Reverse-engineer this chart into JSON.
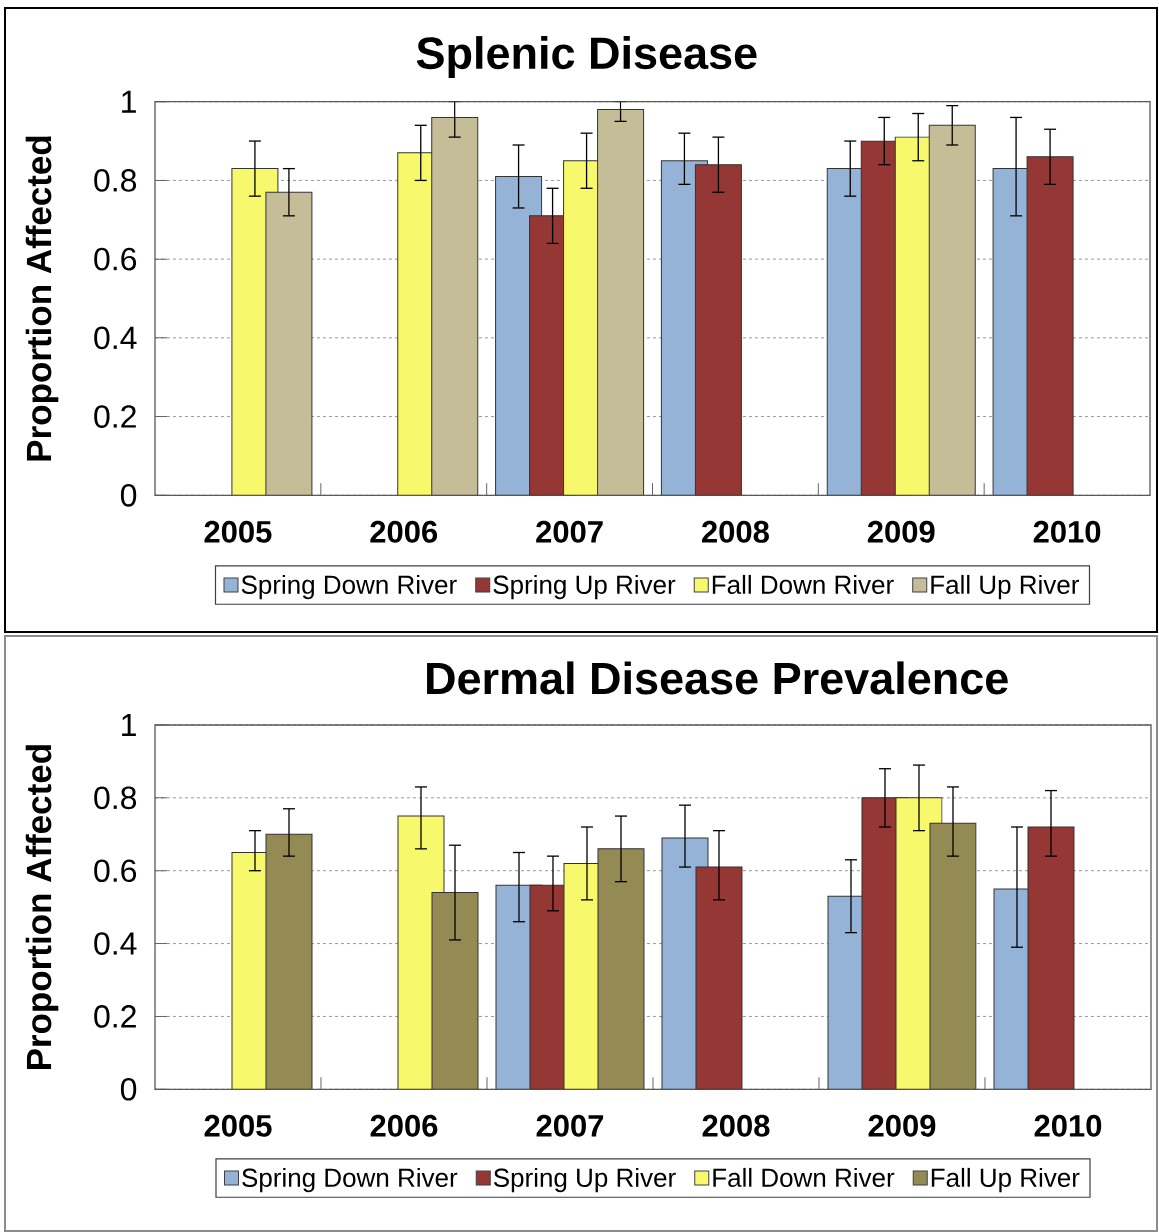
{
  "chart_data": [
    {
      "type": "bar",
      "title": "Splenic Disease",
      "ylabel": "Proportion Affected",
      "categories": [
        "2005",
        "2006",
        "2007",
        "2008",
        "2009",
        "2010"
      ],
      "series": [
        {
          "name": "Spring Down River",
          "color": "#95b3d7",
          "values": [
            null,
            null,
            0.81,
            0.85,
            0.83,
            0.83
          ],
          "errors": [
            null,
            null,
            [
              0.73,
              0.89
            ],
            [
              0.79,
              0.92
            ],
            [
              0.76,
              0.9
            ],
            [
              0.71,
              0.96
            ]
          ]
        },
        {
          "name": "Spring Up River",
          "color": "#953735",
          "values": [
            null,
            null,
            0.71,
            0.84,
            0.9,
            0.86
          ],
          "errors": [
            null,
            null,
            [
              0.64,
              0.78
            ],
            [
              0.77,
              0.91
            ],
            [
              0.84,
              0.96
            ],
            [
              0.79,
              0.93
            ]
          ]
        },
        {
          "name": "Fall Down River",
          "color": "#f8f86c",
          "values": [
            0.83,
            0.87,
            0.85,
            null,
            0.91,
            null
          ],
          "errors": [
            [
              0.76,
              0.9
            ],
            [
              0.8,
              0.94
            ],
            [
              0.78,
              0.92
            ],
            null,
            [
              0.85,
              0.97
            ],
            null
          ]
        },
        {
          "name": "Fall Up River",
          "color": "#c4bd97",
          "values": [
            0.77,
            0.96,
            0.98,
            null,
            0.94,
            null
          ],
          "errors": [
            [
              0.71,
              0.83
            ],
            [
              0.91,
              1.0
            ],
            [
              0.95,
              1.0
            ],
            null,
            [
              0.89,
              0.99
            ],
            null
          ]
        }
      ],
      "ylim": [
        0,
        1
      ],
      "yticks": [
        0,
        0.2,
        0.4,
        0.6,
        0.8,
        1
      ],
      "grid": "y",
      "legend": "bottom"
    },
    {
      "type": "bar",
      "title": "Dermal Disease Prevalence",
      "ylabel": "Proportion Affected",
      "categories": [
        "2005",
        "2006",
        "2007",
        "2008",
        "2009",
        "2010"
      ],
      "series": [
        {
          "name": "Spring Down River",
          "color": "#95b3d7",
          "values": [
            null,
            null,
            0.56,
            0.69,
            0.53,
            0.55
          ],
          "errors": [
            null,
            null,
            [
              0.46,
              0.65
            ],
            [
              0.61,
              0.78
            ],
            [
              0.43,
              0.63
            ],
            [
              0.39,
              0.72
            ]
          ]
        },
        {
          "name": "Spring Up River",
          "color": "#953735",
          "values": [
            null,
            null,
            0.56,
            0.61,
            0.8,
            0.72
          ],
          "errors": [
            null,
            null,
            [
              0.49,
              0.64
            ],
            [
              0.52,
              0.71
            ],
            [
              0.72,
              0.88
            ],
            [
              0.64,
              0.82
            ]
          ]
        },
        {
          "name": "Fall Down River",
          "color": "#f8f86c",
          "values": [
            0.65,
            0.75,
            0.62,
            null,
            0.8,
            null
          ],
          "errors": [
            [
              0.6,
              0.71
            ],
            [
              0.66,
              0.83
            ],
            [
              0.52,
              0.72
            ],
            null,
            [
              0.71,
              0.89
            ],
            null
          ]
        },
        {
          "name": "Fall Up River",
          "color": "#948a54",
          "values": [
            0.7,
            0.54,
            0.66,
            null,
            0.73,
            null
          ],
          "errors": [
            [
              0.64,
              0.77
            ],
            [
              0.41,
              0.67
            ],
            [
              0.57,
              0.75
            ],
            null,
            [
              0.64,
              0.83
            ],
            null
          ]
        }
      ],
      "ylim": [
        0,
        1
      ],
      "yticks": [
        0,
        0.2,
        0.4,
        0.6,
        0.8,
        1
      ],
      "grid": "y",
      "legend": "bottom"
    }
  ]
}
